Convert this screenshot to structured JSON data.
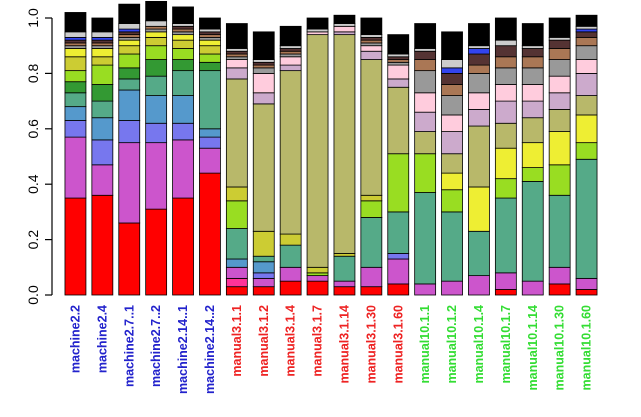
{
  "chart_data": {
    "type": "bar",
    "stacked": true,
    "title": "",
    "xlabel": "",
    "ylabel": "",
    "ylim": [
      0,
      1
    ],
    "yticks": [
      "0.0",
      "0.2",
      "0.4",
      "0.6",
      "0.8",
      "1.0"
    ],
    "grid": false,
    "legend": "none",
    "categories": [
      "machine2.2",
      "machine2.4",
      "machine2.7..1",
      "machine2.7..2",
      "machine2.14..1",
      "machine2.14..2",
      "manual3.1.1",
      "manual3.1.2",
      "manual3.1.4",
      "manual3.1.7",
      "manual3.1.14",
      "manual3.1.30",
      "manual3.1.60",
      "manual10.1.1",
      "manual10.1.2",
      "manual10.1.4",
      "manual10.1.7",
      "manual10.1.14",
      "manual10.1.30",
      "manual10.1.60"
    ],
    "category_label_colors": [
      "#2222cc",
      "#2222cc",
      "#2222cc",
      "#2222cc",
      "#2222cc",
      "#2222cc",
      "#ee2222",
      "#ee2222",
      "#ee2222",
      "#ee2222",
      "#ee2222",
      "#ee2222",
      "#ee2222",
      "#33dd33",
      "#33dd33",
      "#33dd33",
      "#33dd33",
      "#33dd33",
      "#33dd33",
      "#33dd33"
    ],
    "segment_colors": [
      "#ff0000",
      "#ff3399",
      "#cc55cc",
      "#7777ee",
      "#5599cc",
      "#339966",
      "#55aa88",
      "#339933",
      "#99dd22",
      "#cccc33",
      "#eeee33",
      "#b8b86a",
      "#ccaacc",
      "#ffccdd",
      "#999999",
      "#aa7755",
      "#553333",
      "#3344ee",
      "#cccccc",
      "#000000"
    ],
    "series_values": [
      [
        0.35,
        0.0,
        0.22,
        0.06,
        0.05,
        0.0,
        0.05,
        0.04,
        0.04,
        0.05,
        0.03,
        0.0,
        0.0,
        0.0,
        0.01,
        0.01,
        0.01,
        0.01,
        0.02,
        0.07
      ],
      [
        0.36,
        0.0,
        0.11,
        0.09,
        0.08,
        0.0,
        0.06,
        0.06,
        0.07,
        0.03,
        0.03,
        0.0,
        0.0,
        0.0,
        0.01,
        0.01,
        0.01,
        0.01,
        0.02,
        0.05
      ],
      [
        0.26,
        0.0,
        0.29,
        0.08,
        0.11,
        0.0,
        0.04,
        0.04,
        0.05,
        0.03,
        0.02,
        0.0,
        0.0,
        0.0,
        0.01,
        0.01,
        0.01,
        0.01,
        0.02,
        0.07
      ],
      [
        0.31,
        0.0,
        0.24,
        0.07,
        0.1,
        0.0,
        0.07,
        0.06,
        0.05,
        0.03,
        0.02,
        0.0,
        0.0,
        0.0,
        0.01,
        0.01,
        0.0,
        0.0,
        0.02,
        0.07
      ],
      [
        0.35,
        0.0,
        0.21,
        0.06,
        0.1,
        0.0,
        0.09,
        0.04,
        0.04,
        0.03,
        0.02,
        0.0,
        0.0,
        0.0,
        0.01,
        0.01,
        0.01,
        0.0,
        0.01,
        0.06
      ],
      [
        0.44,
        0.0,
        0.09,
        0.04,
        0.03,
        0.0,
        0.21,
        0.03,
        0.03,
        0.03,
        0.02,
        0.0,
        0.0,
        0.0,
        0.01,
        0.01,
        0.01,
        0.0,
        0.01,
        0.04
      ],
      [
        0.03,
        0.03,
        0.04,
        0.0,
        0.03,
        0.0,
        0.11,
        0.0,
        0.1,
        0.05,
        0.0,
        0.39,
        0.04,
        0.03,
        0.01,
        0.01,
        0.01,
        0.0,
        0.01,
        0.09
      ],
      [
        0.03,
        0.0,
        0.03,
        0.02,
        0.04,
        0.0,
        0.02,
        0.0,
        0.0,
        0.09,
        0.0,
        0.46,
        0.04,
        0.07,
        0.02,
        0.01,
        0.01,
        0.0,
        0.01,
        0.1
      ],
      [
        0.05,
        0.0,
        0.05,
        0.0,
        0.0,
        0.0,
        0.08,
        0.0,
        0.0,
        0.04,
        0.0,
        0.59,
        0.02,
        0.03,
        0.01,
        0.01,
        0.01,
        0.0,
        0.01,
        0.07
      ],
      [
        0.05,
        0.0,
        0.02,
        0.0,
        0.0,
        0.0,
        0.0,
        0.0,
        0.01,
        0.02,
        0.0,
        0.84,
        0.0,
        0.01,
        0.0,
        0.0,
        0.0,
        0.0,
        0.01,
        0.04
      ],
      [
        0.03,
        0.0,
        0.02,
        0.0,
        0.0,
        0.0,
        0.09,
        0.0,
        0.0,
        0.01,
        0.0,
        0.79,
        0.01,
        0.02,
        0.0,
        0.0,
        0.0,
        0.0,
        0.01,
        0.03
      ],
      [
        0.03,
        0.0,
        0.07,
        0.0,
        0.0,
        0.0,
        0.18,
        0.0,
        0.06,
        0.02,
        0.0,
        0.49,
        0.03,
        0.02,
        0.01,
        0.01,
        0.01,
        0.0,
        0.01,
        0.06
      ],
      [
        0.04,
        0.0,
        0.09,
        0.02,
        0.0,
        0.0,
        0.15,
        0.0,
        0.21,
        0.0,
        0.0,
        0.24,
        0.03,
        0.05,
        0.01,
        0.01,
        0.01,
        0.0,
        0.01,
        0.07
      ],
      [
        0.0,
        0.0,
        0.04,
        0.0,
        0.0,
        0.0,
        0.33,
        0.0,
        0.14,
        0.0,
        0.0,
        0.08,
        0.07,
        0.07,
        0.08,
        0.04,
        0.03,
        0.0,
        0.01,
        0.09
      ],
      [
        0.0,
        0.0,
        0.05,
        0.0,
        0.0,
        0.0,
        0.25,
        0.0,
        0.08,
        0.0,
        0.06,
        0.07,
        0.08,
        0.06,
        0.07,
        0.04,
        0.04,
        0.02,
        0.03,
        0.1
      ],
      [
        0.0,
        0.0,
        0.07,
        0.0,
        0.0,
        0.0,
        0.16,
        0.0,
        0.0,
        0.0,
        0.16,
        0.22,
        0.06,
        0.06,
        0.07,
        0.03,
        0.04,
        0.02,
        0.01,
        0.08
      ],
      [
        0.02,
        0.0,
        0.06,
        0.0,
        0.0,
        0.0,
        0.27,
        0.0,
        0.07,
        0.0,
        0.11,
        0.09,
        0.08,
        0.06,
        0.06,
        0.04,
        0.04,
        0.0,
        0.02,
        0.08
      ],
      [
        0.0,
        0.0,
        0.05,
        0.0,
        0.0,
        0.0,
        0.36,
        0.0,
        0.05,
        0.0,
        0.09,
        0.09,
        0.06,
        0.06,
        0.06,
        0.04,
        0.03,
        0.0,
        0.01,
        0.08
      ],
      [
        0.04,
        0.0,
        0.06,
        0.0,
        0.0,
        0.0,
        0.26,
        0.0,
        0.11,
        0.0,
        0.12,
        0.08,
        0.06,
        0.06,
        0.06,
        0.04,
        0.03,
        0.0,
        0.01,
        0.07
      ],
      [
        0.02,
        0.0,
        0.04,
        0.0,
        0.0,
        0.0,
        0.43,
        0.0,
        0.06,
        0.0,
        0.1,
        0.07,
        0.08,
        0.05,
        0.05,
        0.03,
        0.02,
        0.01,
        0.01,
        0.04
      ]
    ]
  }
}
